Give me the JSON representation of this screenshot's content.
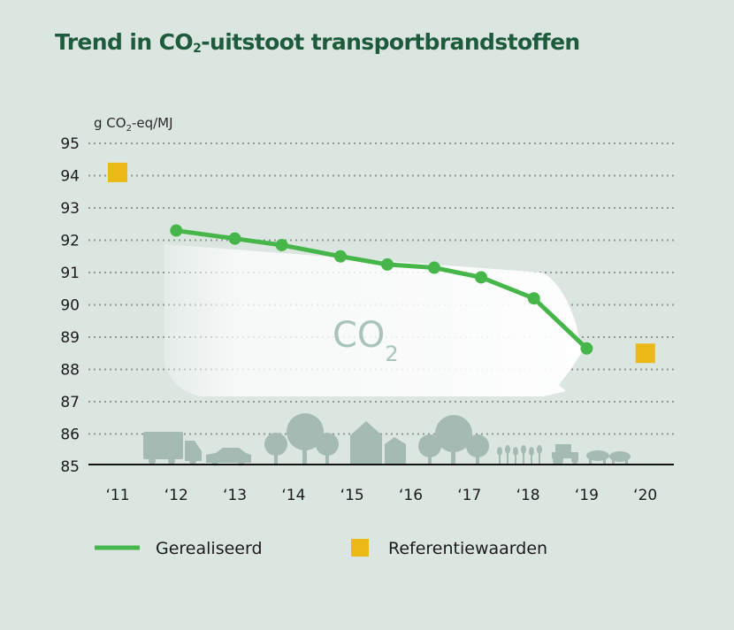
{
  "title": {
    "prefix": "Trend in CO",
    "sub": "2",
    "suffix": "-uitstoot transportbrandstoffen"
  },
  "colors": {
    "background": "#dce6e1",
    "title": "#1e5a3c",
    "series_realised": "#47b64a",
    "series_reference": "#ebb915",
    "grid": "#8f9994",
    "silhouettes": "#a4bab2",
    "arrow": "#ffffff"
  },
  "chart_data": {
    "type": "line",
    "ylabel": {
      "prefix": "g CO",
      "sub": "2",
      "suffix": "-eq/MJ"
    },
    "ylim": [
      85,
      95
    ],
    "yticks": [
      95,
      94,
      93,
      92,
      91,
      90,
      89,
      88,
      87,
      86,
      85
    ],
    "xcategories": [
      "‘11",
      "‘12",
      "‘13",
      "‘14",
      "‘15",
      "‘16",
      "‘17",
      "‘18",
      "‘19",
      "‘20"
    ],
    "grid": true,
    "series": [
      {
        "name": "Gerealiseerd",
        "kind": "line",
        "points": [
          {
            "x": 12.0,
            "y": 92.3
          },
          {
            "x": 13.0,
            "y": 92.05
          },
          {
            "x": 13.8,
            "y": 91.85
          },
          {
            "x": 14.8,
            "y": 91.5
          },
          {
            "x": 15.6,
            "y": 91.25
          },
          {
            "x": 16.4,
            "y": 91.15
          },
          {
            "x": 17.2,
            "y": 90.85
          },
          {
            "x": 18.1,
            "y": 90.2
          },
          {
            "x": 19.0,
            "y": 88.65
          }
        ]
      },
      {
        "name": "Referentiewaarden",
        "kind": "marker-square",
        "points": [
          {
            "x": 11.0,
            "y": 94.1
          },
          {
            "x": 20.0,
            "y": 88.5
          }
        ]
      }
    ],
    "annotation": {
      "prefix": "CO",
      "sub": "2"
    },
    "legend_position": "bottom"
  }
}
